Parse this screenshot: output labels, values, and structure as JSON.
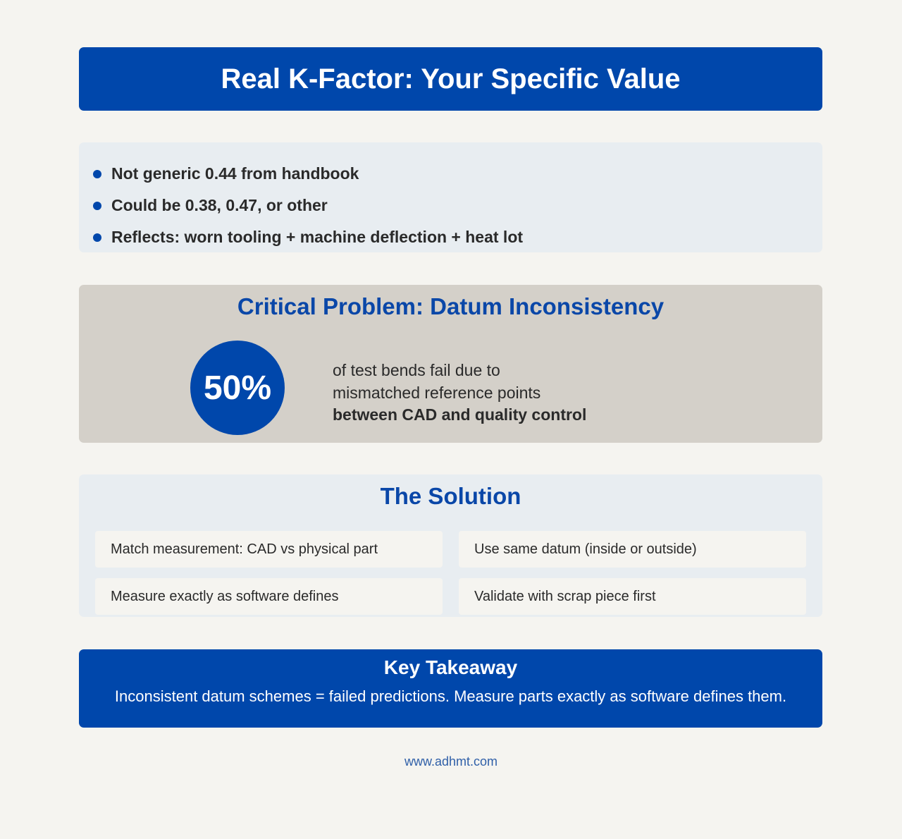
{
  "header": {
    "title": "Real K-Factor: Your Specific Value"
  },
  "points": [
    "Not generic 0.44 from handbook",
    "Could be 0.38, 0.47, or other",
    "Reflects: worn tooling + machine deflection + heat lot"
  ],
  "problem": {
    "title": "Critical Problem: Datum Inconsistency",
    "stat": "50%",
    "lines": [
      "of test bends fail due to",
      "mismatched reference points"
    ],
    "emphasis": "between CAD and quality control"
  },
  "solution": {
    "title": "The Solution",
    "items": [
      "Match measurement: CAD vs physical part",
      "Use same datum (inside or outside)",
      "Measure exactly as software defines",
      "Validate with scrap piece first"
    ]
  },
  "takeaway": {
    "title": "Key Takeaway",
    "text": "Inconsistent datum schemes = failed predictions. Measure parts exactly as software defines them."
  },
  "footer": {
    "url": "www.adhmt.com"
  }
}
